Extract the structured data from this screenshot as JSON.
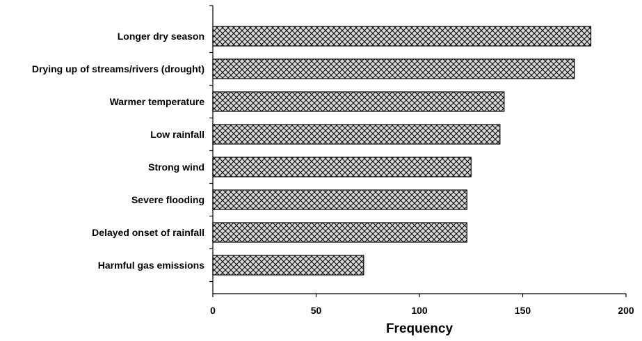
{
  "chart_data": {
    "type": "bar",
    "orientation": "horizontal",
    "title": "",
    "xlabel": "Frequency",
    "ylabel": "",
    "categories": [
      "Longer dry season",
      "Drying up of streams/rivers (drought)",
      "Warmer temperature",
      "Low rainfall",
      "Strong wind",
      "Severe flooding",
      "Delayed onset of rainfall",
      "Harmful gas emissions"
    ],
    "values": [
      183,
      175,
      141,
      139,
      125,
      123,
      123,
      73
    ],
    "xlim": [
      0,
      200
    ],
    "xticks": [
      "0",
      "50",
      "100",
      "150",
      "200"
    ],
    "grid": false,
    "legend": "none",
    "bar_fill": "crosshatch",
    "colors": {
      "bar_background": "#d9d9d9",
      "hatch": "#000000",
      "axis": "#000000"
    }
  }
}
